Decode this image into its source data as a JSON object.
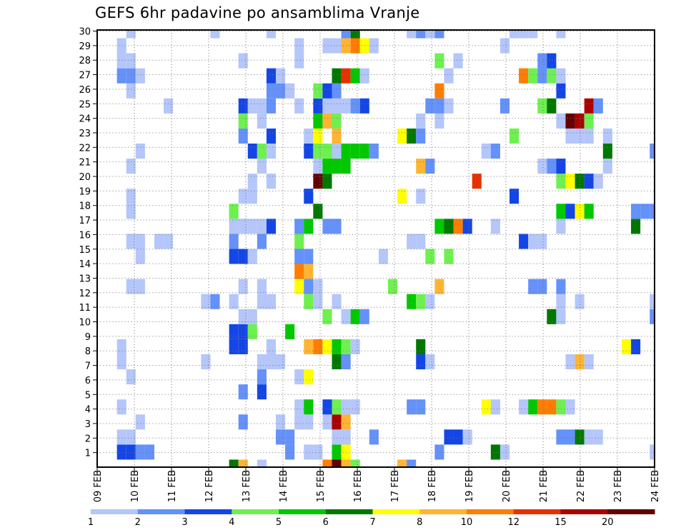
{
  "chart_data": {
    "type": "heatmap",
    "title": "GEFS 6hr padavine po ansamblima Vranje",
    "xlabel": "",
    "ylabel": "",
    "x_tick_labels": [
      "09 FEB",
      "10 FEB",
      "11 FEB",
      "12 FEB",
      "13 FEB",
      "14 FEB",
      "15 FEB",
      "16 FEB",
      "17 FEB",
      "18 FEB",
      "19 FEB",
      "20 FEB",
      "21 FEB",
      "22 FEB",
      "23 FEB",
      "24 FEB"
    ],
    "y_tick_labels": [
      "1",
      "2",
      "3",
      "4",
      "5",
      "6",
      "7",
      "8",
      "9",
      "10",
      "11",
      "12",
      "13",
      "14",
      "15",
      "16",
      "17",
      "18",
      "19",
      "20",
      "21",
      "22",
      "23",
      "24",
      "25",
      "26",
      "27",
      "28",
      "29",
      "30"
    ],
    "time_step_hours": 6,
    "grid": true,
    "legend": {
      "placement": "bottom",
      "levels": [
        "1",
        "2",
        "3",
        "4",
        "5",
        "6",
        "7",
        "8",
        "10",
        "12",
        "15",
        "20"
      ],
      "colors": [
        "#b4c6fa",
        "#6491fa",
        "#1446e6",
        "#6ef050",
        "#00c800",
        "#007800",
        "#ffff00",
        "#ffb432",
        "#ff7d00",
        "#e63200",
        "#aa0000",
        "#640000"
      ]
    },
    "cell_code_legend": "'.'=below 1; '1'..'9','A','B','C' = colour class index 1..12 (1-2,2-3,3-4,4-5,5-6,6-7,7-8,8-10,10-12,12-15,15-20,>20)",
    "rows_bottom_to_top": [
      "..............68.1......9C84....82..........................",
      "..3322..............2.11.57.........2.....61...............1...12.21",
      "..11...............22....11..2.......331.........22611",
      "....1..........2...1.11.1B8.................................",
      "..1..................15.3411.....22......71..159941..........",
      "...............2.3..........................................13",
      "...1.............2...17.....................................3",
      "..1........1.....111.....62.......31..............181.......",
      "..1...........33..1...897541......6.....................73...",
      "..............334...5.......................................21......",
      "...............11.......4.152...................61.........2.69",
      "...........12.1..11...41.1.......541.............1 1.......1.",
      "...11..........1.1...721.......4....8.........22.2..........",
      ".....................98.....................................4",
      "....1.........331....22.......1....4.4......................",
      "...11.11......2..2...4...........11..........311...........",
      "..............11113..25.22..........5693..1......1.......6..34..",
      "...1..........4........6.........................5375....2222.......",
      "...1...........11.....3.........7.1.........3.................",
      "................1.1....C6...............A........47631........",
      "...1.............1.....1555.......82...........123....1.....",
      "....1...........341...34415552...........12...........6....2",
      "...............2..3...17.8......762.........4.....111.1.....",
      "...............4.1.....584........1.1............1CB4.......",
      ".......1.......3112..1.311123......221.....2...46...B2.......",
      "...1..............221..432..........9............3............",
      "..221.............31.....6A51........1.......94241...........",
      "..11...........1.....1..............4.1........23..........",
      "..1..................1..118971.............1................",
      "...1........1.....1.......26.....1212.......111..1.........."
    ]
  }
}
